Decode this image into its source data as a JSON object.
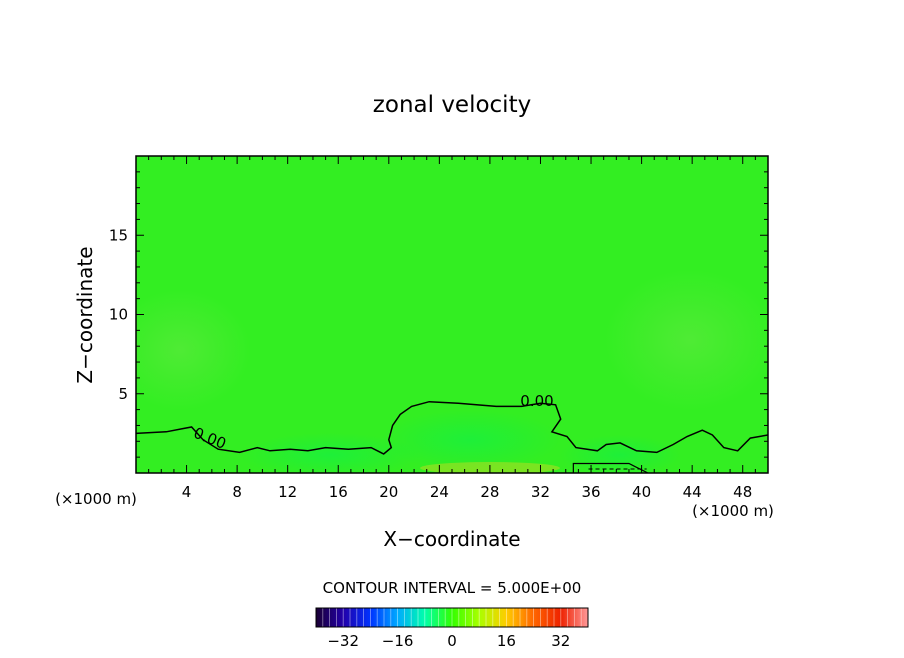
{
  "chart_data": {
    "type": "heatmap",
    "title": "zonal velocity",
    "xlabel": "X−coordinate",
    "ylabel": "Z−coordinate",
    "x_unit_left": "(×1000 m)",
    "x_unit_right": "(×1000 m)",
    "xlim": [
      0,
      50
    ],
    "ylim": [
      0,
      20
    ],
    "x_ticks": [
      4,
      8,
      12,
      16,
      20,
      24,
      28,
      32,
      36,
      40,
      44,
      48
    ],
    "y_ticks": [
      5,
      10,
      15
    ],
    "contour_interval_label": "CONTOUR INTERVAL = 5.000E+00",
    "contour_level_label": "0.00",
    "colorbar": {
      "range": [
        -40,
        40
      ],
      "ticks": [
        -32,
        -16,
        0,
        16,
        32
      ],
      "colormap": [
        "#1a0033",
        "#2200aa",
        "#0033ff",
        "#00aaff",
        "#00ffaa",
        "#33ff00",
        "#aaff00",
        "#ffcc00",
        "#ff6600",
        "#ee2200",
        "#ff9999"
      ]
    },
    "field_color": "#33ee22",
    "zero_contour": [
      [
        0,
        2.5
      ],
      [
        2.4,
        2.6
      ],
      [
        3.7,
        2.8
      ],
      [
        4.4,
        2.9
      ],
      [
        5.3,
        2.1
      ],
      [
        6.5,
        1.5
      ],
      [
        8.2,
        1.3
      ],
      [
        9.6,
        1.6
      ],
      [
        10.6,
        1.4
      ],
      [
        12.2,
        1.5
      ],
      [
        13.6,
        1.4
      ],
      [
        15.0,
        1.6
      ],
      [
        16.8,
        1.5
      ],
      [
        18.6,
        1.6
      ],
      [
        19.6,
        1.2
      ],
      [
        20.2,
        1.6
      ],
      [
        20.0,
        2.1
      ],
      [
        20.3,
        3.0
      ],
      [
        20.9,
        3.7
      ],
      [
        21.8,
        4.2
      ],
      [
        23.2,
        4.5
      ],
      [
        25.5,
        4.4
      ],
      [
        28.5,
        4.2
      ],
      [
        30.5,
        4.2
      ],
      [
        32.0,
        4.4
      ],
      [
        33.2,
        4.3
      ],
      [
        33.6,
        3.4
      ],
      [
        32.9,
        2.6
      ],
      [
        34.1,
        2.3
      ],
      [
        34.8,
        1.6
      ],
      [
        36.5,
        1.4
      ],
      [
        37.2,
        1.8
      ],
      [
        38.3,
        1.9
      ],
      [
        39.6,
        1.4
      ],
      [
        41.2,
        1.3
      ],
      [
        42.5,
        1.8
      ],
      [
        43.6,
        2.3
      ],
      [
        44.8,
        2.7
      ],
      [
        45.6,
        2.4
      ],
      [
        46.5,
        1.6
      ],
      [
        47.6,
        1.4
      ],
      [
        48.6,
        2.2
      ],
      [
        50,
        2.4
      ]
    ]
  }
}
